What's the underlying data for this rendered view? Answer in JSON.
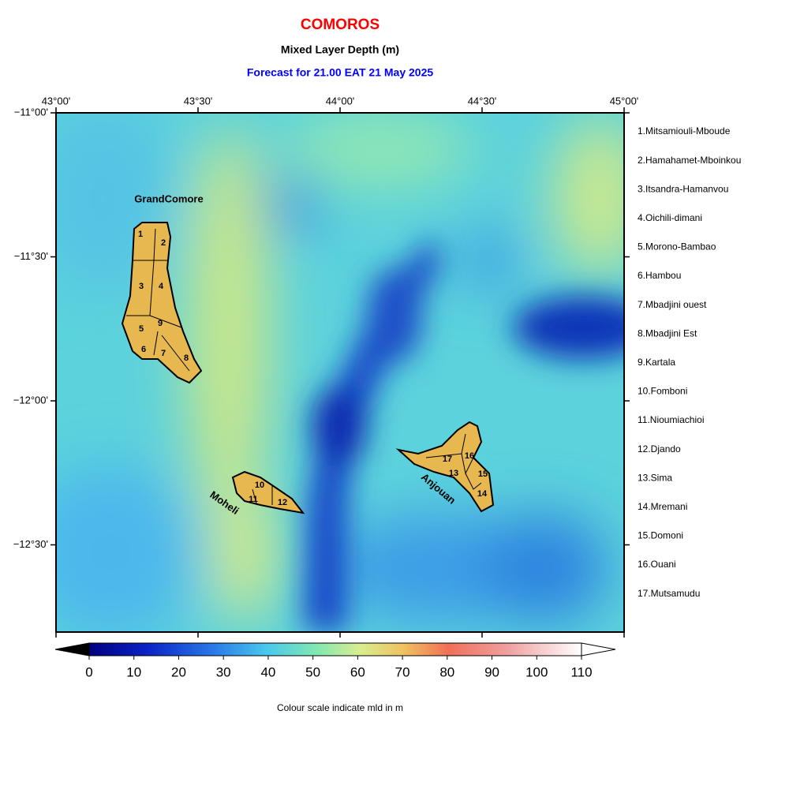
{
  "header": {
    "title": "COMOROS",
    "subtitle": "Mixed Layer Depth (m)",
    "forecast": "Forecast for  21.00 EAT 21 May 2025"
  },
  "map": {
    "lon_labels": [
      "43°00'",
      "43°30'",
      "44°00'",
      "44°30'",
      "45°00'"
    ],
    "lat_labels": [
      "−11°00'",
      "−11°30'",
      "−12°00'",
      "−12°30'"
    ],
    "islands": [
      {
        "name": "GrandComore",
        "regions": [
          "1",
          "2",
          "3",
          "4",
          "5",
          "6",
          "7",
          "8",
          "9"
        ]
      },
      {
        "name": "Moheli",
        "regions": [
          "10",
          "11",
          "12"
        ]
      },
      {
        "name": "Anjouan",
        "regions": [
          "13",
          "14",
          "15",
          "16",
          "17"
        ]
      }
    ]
  },
  "legend": {
    "regions": [
      "1.Mitsamiouli-Mboude",
      "2.Hamahamet-Mboinkou",
      "3.Itsandra-Hamanvou",
      "4.Oichili-dimani",
      "5.Morono-Bambao",
      "6.Hambou",
      "7.Mbadjini ouest",
      "8.Mbadjini Est",
      "9.Kartala",
      "10.Fomboni",
      "11.Nioumiachioi",
      "12.Djando",
      "13.Sima",
      "14.Mremani",
      "15.Domoni",
      "16.Ouani",
      "17.Mutsamudu"
    ]
  },
  "colorbar": {
    "ticks": [
      0,
      10,
      20,
      30,
      40,
      50,
      60,
      70,
      80,
      90,
      100,
      110
    ],
    "caption": "Colour scale indicate mld in m"
  }
}
